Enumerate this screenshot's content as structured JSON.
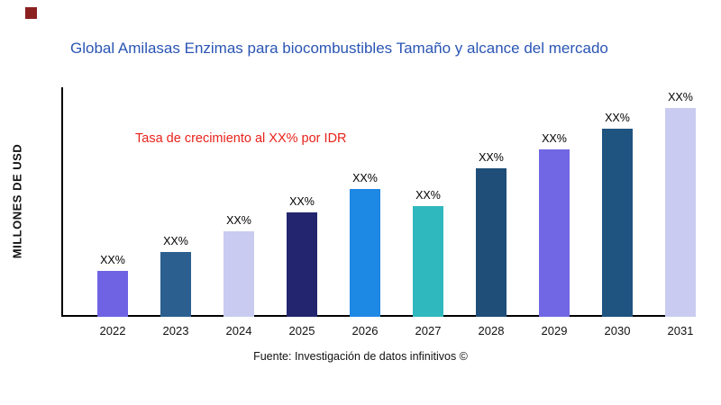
{
  "title": "Global Amilasas Enzimas para biocombustibles Tamaño y alcance del mercado",
  "y_axis_label": "MILLONES DE USD",
  "annotation": "Tasa de crecimiento al XX% por IDR",
  "source": "Fuente: Investigación de datos infinitivos ©",
  "colors": {
    "title": "#2a55b4",
    "annotation": "#e8221a",
    "axis": "#000000",
    "corner_mark": "#8b2020"
  },
  "chart_data": {
    "type": "bar",
    "title": "Global Amilasas Enzimas para biocombustibles Tamaño y alcance del mercado",
    "xlabel": "",
    "ylabel": "MILLONES DE USD",
    "categories": [
      "2022",
      "2023",
      "2024",
      "2025",
      "2026",
      "2027",
      "2028",
      "2029",
      "2030",
      "2031"
    ],
    "values": [
      22,
      31,
      41,
      50,
      61,
      53,
      71,
      80,
      90,
      100
    ],
    "bar_labels": [
      "XX%",
      "XX%",
      "XX%",
      "XX%",
      "XX%",
      "XX%",
      "XX%",
      "XX%",
      "XX%",
      "XX%"
    ],
    "bar_colors": [
      "#6f63e3",
      "#2a5f8f",
      "#c9ccf0",
      "#23256e",
      "#1e88e5",
      "#30b8bf",
      "#1f4e79",
      "#7166e3",
      "#1f5380",
      "#c9ccf0"
    ],
    "ylim": [
      0,
      100
    ],
    "grid": false,
    "legend": false,
    "annotation": "Tasa de crecimiento al XX% por IDR"
  }
}
